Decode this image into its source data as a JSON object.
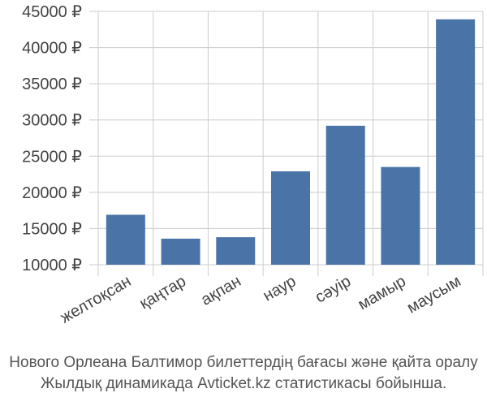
{
  "chart_data": {
    "type": "bar",
    "title": "",
    "xlabel": "",
    "ylabel": "",
    "categories": [
      "желтоқсан",
      "қаңтар",
      "ақпан",
      "наур",
      "сәуір",
      "мамыр",
      "маусым"
    ],
    "values": [
      16900,
      13600,
      13800,
      22900,
      29200,
      23500,
      43900
    ],
    "ylim": [
      10000,
      45000
    ],
    "yticks": [
      10000,
      15000,
      20000,
      25000,
      30000,
      35000,
      40000,
      45000
    ],
    "ytick_labels": [
      "10000 ₽",
      "15000 ₽",
      "20000 ₽",
      "25000 ₽",
      "30000 ₽",
      "35000 ₽",
      "40000 ₽",
      "45000 ₽"
    ],
    "grid": true,
    "bar_color": "#4a74a8",
    "grid_color": "#cccccc"
  },
  "caption": {
    "line1": "Нового Орлеана Балтимор билеттердің бағасы және қайта оралу",
    "line2": "Жылдық динамикада Avticket.kz статистикасы бойынша."
  }
}
